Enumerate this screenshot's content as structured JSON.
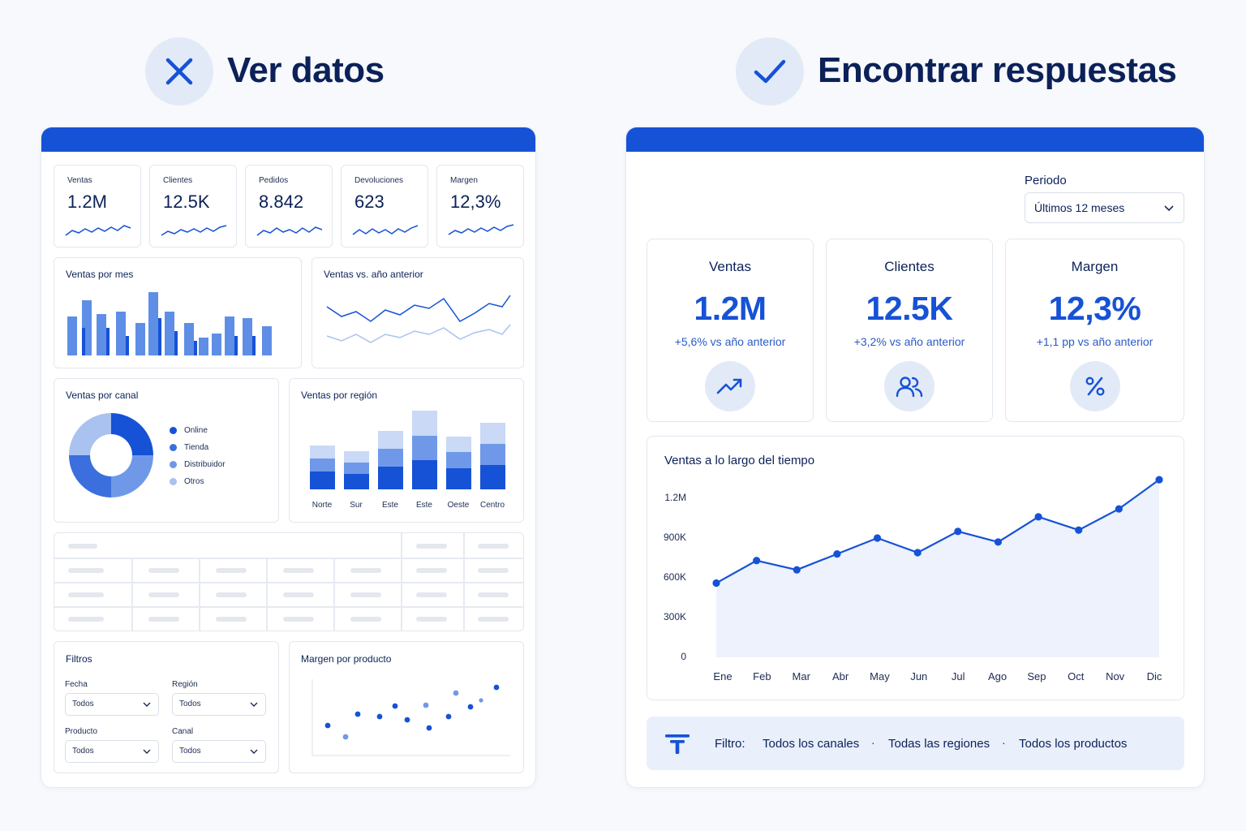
{
  "left": {
    "heading": "Ver datos",
    "kpis": [
      {
        "label": "Ventas",
        "value": "1.2M"
      },
      {
        "label": "Clientes",
        "value": "12.5K"
      },
      {
        "label": "Pedidos",
        "value": "8.842"
      },
      {
        "label": "Devoluciones",
        "value": "623"
      },
      {
        "label": "Margen",
        "value": "12,3%"
      }
    ],
    "charts": {
      "monthly_title": "Ventas por mes",
      "yoy_title": "Ventas vs. año anterior",
      "channel_title": "Ventas por canal",
      "channel_legend": [
        "Online",
        "Tienda",
        "Distribuidor",
        "Otros"
      ],
      "region_title": "Ventas por región",
      "region_labels": [
        "Norte",
        "Sur",
        "Este",
        "Este",
        "Oeste",
        "Centro"
      ],
      "margin_title": "Margen por producto"
    },
    "filters": {
      "title": "Filtros",
      "fields": [
        {
          "label": "Fecha",
          "value": "Todos"
        },
        {
          "label": "Región",
          "value": "Todos"
        },
        {
          "label": "Producto",
          "value": "Todos"
        },
        {
          "label": "Canal",
          "value": "Todos"
        }
      ]
    }
  },
  "right": {
    "heading": "Encontrar respuestas",
    "period": {
      "label": "Periodo",
      "value": "Últimos 12 meses"
    },
    "kpis": [
      {
        "label": "Ventas",
        "value": "1.2M",
        "delta": "+5,6% vs año anterior",
        "icon": "trending-up-icon"
      },
      {
        "label": "Clientes",
        "value": "12.5K",
        "delta": "+3,2% vs año anterior",
        "icon": "users-icon"
      },
      {
        "label": "Margen",
        "value": "12,3%",
        "delta": "+1,1 pp vs año anterior",
        "icon": "percent-icon"
      }
    ],
    "filter_bar": {
      "label": "Filtro:",
      "items": [
        "Todos los canales",
        "Todas las regiones",
        "Todos los productos"
      ]
    }
  },
  "colors": {
    "accent": "#1652d6",
    "navy": "#0b2158",
    "light_blue": "#e3eaf7"
  },
  "chart_data": [
    {
      "type": "area",
      "title": "Ventas a lo largo del tiempo",
      "categories": [
        "Ene",
        "Feb",
        "Mar",
        "Abr",
        "May",
        "Jun",
        "Jul",
        "Ago",
        "Sep",
        "Oct",
        "Nov",
        "Dic"
      ],
      "y_ticks": [
        "1.2M",
        "900K",
        "600K",
        "300K",
        "0"
      ],
      "ylim": [
        0,
        1200000
      ],
      "series": [
        {
          "values": [
            560000,
            730000,
            660000,
            780000,
            900000,
            790000,
            950000,
            870000,
            1060000,
            960000,
            1120000,
            1340000
          ]
        }
      ],
      "grid": false
    }
  ]
}
